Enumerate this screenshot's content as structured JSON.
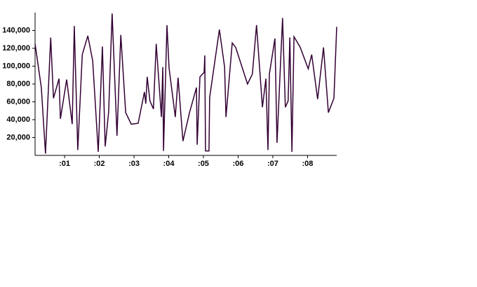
{
  "chart_data": {
    "type": "line",
    "x": [
      0.15,
      0.33,
      0.45,
      0.6,
      0.68,
      0.84,
      0.88,
      1.06,
      1.22,
      1.28,
      1.38,
      1.51,
      1.67,
      1.81,
      1.97,
      2.09,
      2.17,
      2.27,
      2.37,
      2.51,
      2.62,
      2.76,
      2.92,
      3.12,
      3.3,
      3.34,
      3.38,
      3.46,
      3.56,
      3.64,
      3.79,
      3.83,
      3.85,
      3.95,
      4.01,
      4.19,
      4.27,
      4.41,
      4.6,
      4.8,
      4.82,
      4.9,
      5.02,
      5.04,
      5.06,
      5.16,
      5.18,
      5.46,
      5.61,
      5.65,
      5.83,
      5.93,
      6.27,
      6.41,
      6.53,
      6.7,
      6.8,
      6.86,
      6.9,
      7.06,
      7.12,
      7.28,
      7.36,
      7.44,
      7.49,
      7.55,
      7.61,
      7.79,
      8.02,
      8.12,
      8.29,
      8.46,
      8.6,
      8.76,
      8.84
    ],
    "series": [
      {
        "color": "#330033",
        "values": [
          125000,
          76000,
          2000,
          132000,
          64000,
          86000,
          41000,
          85000,
          35000,
          145000,
          6000,
          113000,
          134000,
          106000,
          4000,
          122000,
          10000,
          49000,
          159000,
          22000,
          135000,
          48000,
          35000,
          36000,
          71000,
          58000,
          88000,
          61000,
          52000,
          125000,
          43000,
          99000,
          5000,
          146000,
          98000,
          43000,
          87000,
          16000,
          48000,
          76000,
          12000,
          88000,
          93000,
          112000,
          5000,
          5000,
          65000,
          141000,
          99000,
          43000,
          126000,
          121000,
          80000,
          91000,
          146000,
          54000,
          86000,
          6000,
          91000,
          131000,
          14000,
          154000,
          54000,
          61000,
          132000,
          4000,
          133000,
          121000,
          97000,
          113000,
          63000,
          121000,
          48000,
          64000,
          144000
        ]
      }
    ],
    "xlim": [
      0.15,
      8.84
    ],
    "xticks": [
      {
        "value": 1,
        "label": ":01"
      },
      {
        "value": 2,
        "label": ":02"
      },
      {
        "value": 3,
        "label": ":03"
      },
      {
        "value": 4,
        "label": ":04"
      },
      {
        "value": 5,
        "label": ":05"
      },
      {
        "value": 6,
        "label": ":06"
      },
      {
        "value": 7,
        "label": ":07"
      },
      {
        "value": 8,
        "label": ":08"
      }
    ],
    "ylim": [
      0,
      160000
    ],
    "yticks": [
      {
        "value": 20000,
        "label": "20,000"
      },
      {
        "value": 40000,
        "label": "40,000"
      },
      {
        "value": 60000,
        "label": "60,000"
      },
      {
        "value": 80000,
        "label": "80,000"
      },
      {
        "value": 100000,
        "label": "100,000"
      },
      {
        "value": 120000,
        "label": "120,000"
      },
      {
        "value": 140000,
        "label": "140,000"
      }
    ]
  }
}
